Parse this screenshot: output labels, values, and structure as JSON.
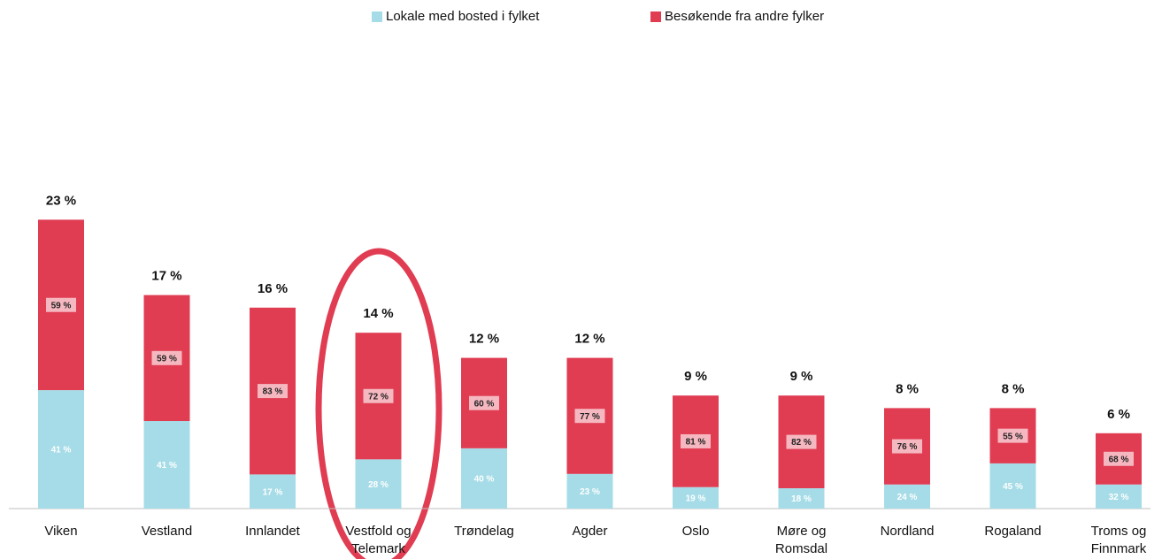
{
  "chart_data": {
    "type": "bar",
    "categories": [
      "Viken",
      "Vestland",
      "Innlandet",
      "Vestfold og Telemark",
      "Trøndelag",
      "Agder",
      "Oslo",
      "Møre og Romsdal",
      "Nordland",
      "Rogaland",
      "Troms og Finnmark"
    ],
    "totals": [
      23,
      17,
      16,
      14,
      12,
      12,
      9,
      9,
      8,
      8,
      6
    ],
    "total_labels": [
      "23 %",
      "17 %",
      "16 %",
      "14 %",
      "12 %",
      "12 %",
      "9 %",
      "9 %",
      "8 %",
      "8 %",
      "6 %"
    ],
    "series": [
      {
        "name": "Lokale med bosted i fylket",
        "color": "#a6dce7",
        "values": [
          41,
          41,
          17,
          28,
          40,
          23,
          19,
          18,
          24,
          45,
          32
        ],
        "value_labels": [
          "41 %",
          "41 %",
          "17 %",
          "28 %",
          "40 %",
          "23 %",
          "19 %",
          "18 %",
          "24 %",
          "45 %",
          "32 %"
        ]
      },
      {
        "name": "Besøkende fra andre fylker",
        "color": "#e03c52",
        "values": [
          59,
          59,
          83,
          72,
          60,
          77,
          81,
          82,
          76,
          55,
          68
        ],
        "value_labels": [
          "59 %",
          "59 %",
          "83 %",
          "72 %",
          "60 %",
          "77 %",
          "81 %",
          "82 %",
          "76 %",
          "55 %",
          "68 %"
        ]
      }
    ]
  }
}
